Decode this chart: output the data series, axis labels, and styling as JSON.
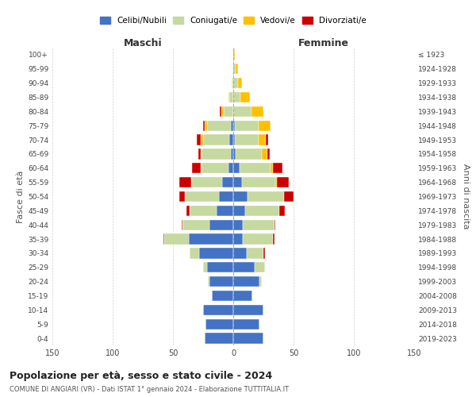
{
  "age_groups": [
    "100+",
    "95-99",
    "90-94",
    "85-89",
    "80-84",
    "75-79",
    "70-74",
    "65-69",
    "60-64",
    "55-59",
    "50-54",
    "45-49",
    "40-44",
    "35-39",
    "30-34",
    "25-29",
    "20-24",
    "15-19",
    "10-14",
    "5-9",
    "0-4"
  ],
  "birth_years": [
    "≤ 1923",
    "1924-1928",
    "1929-1933",
    "1934-1938",
    "1939-1943",
    "1944-1948",
    "1949-1953",
    "1954-1958",
    "1959-1963",
    "1964-1968",
    "1969-1973",
    "1974-1978",
    "1979-1983",
    "1984-1988",
    "1989-1993",
    "1994-1998",
    "1999-2003",
    "2004-2008",
    "2009-2013",
    "2014-2018",
    "2019-2023"
  ],
  "colors": {
    "celibi": "#4472c4",
    "coniugati": "#c5d9a0",
    "vedovi": "#ffc000",
    "divorziati": "#cc0000"
  },
  "males": {
    "celibi": [
      0,
      0,
      0,
      0,
      0,
      2,
      3,
      2,
      4,
      9,
      12,
      14,
      20,
      37,
      28,
      22,
      20,
      18,
      25,
      23,
      24
    ],
    "coniugati": [
      0,
      0,
      1,
      3,
      8,
      20,
      22,
      24,
      22,
      26,
      28,
      22,
      22,
      20,
      8,
      3,
      1,
      0,
      0,
      0,
      0
    ],
    "vedovi": [
      0,
      0,
      0,
      1,
      2,
      2,
      2,
      1,
      1,
      0,
      0,
      0,
      0,
      0,
      0,
      0,
      0,
      0,
      0,
      0,
      0
    ],
    "divorziati": [
      0,
      0,
      0,
      0,
      1,
      1,
      3,
      2,
      7,
      10,
      5,
      3,
      1,
      1,
      0,
      0,
      0,
      0,
      0,
      0,
      0
    ]
  },
  "females": {
    "celibi": [
      0,
      0,
      0,
      0,
      0,
      1,
      1,
      2,
      5,
      7,
      12,
      10,
      8,
      8,
      11,
      18,
      22,
      16,
      25,
      22,
      25
    ],
    "coniugati": [
      0,
      2,
      4,
      6,
      15,
      20,
      20,
      22,
      26,
      28,
      30,
      28,
      26,
      25,
      14,
      8,
      2,
      0,
      0,
      0,
      0
    ],
    "vedovi": [
      1,
      2,
      3,
      8,
      10,
      10,
      6,
      4,
      2,
      1,
      0,
      0,
      0,
      0,
      0,
      0,
      0,
      0,
      0,
      0,
      0
    ],
    "divorziati": [
      0,
      0,
      0,
      0,
      0,
      0,
      2,
      2,
      8,
      10,
      8,
      5,
      1,
      1,
      1,
      0,
      0,
      0,
      0,
      0,
      0
    ]
  },
  "title": "Popolazione per età, sesso e stato civile - 2024",
  "subtitle": "COMUNE DI ANGIARI (VR) - Dati ISTAT 1° gennaio 2024 - Elaborazione TUTTITALIA.IT",
  "xlabel_left": "Maschi",
  "xlabel_right": "Femmine",
  "ylabel_left": "Fasce di età",
  "ylabel_right": "Anni di nascita",
  "xlim": 150,
  "legend_labels": [
    "Celibi/Nubili",
    "Coniugati/e",
    "Vedovi/e",
    "Divorziati/e"
  ],
  "bg_color": "#ffffff",
  "grid_color": "#cccccc"
}
